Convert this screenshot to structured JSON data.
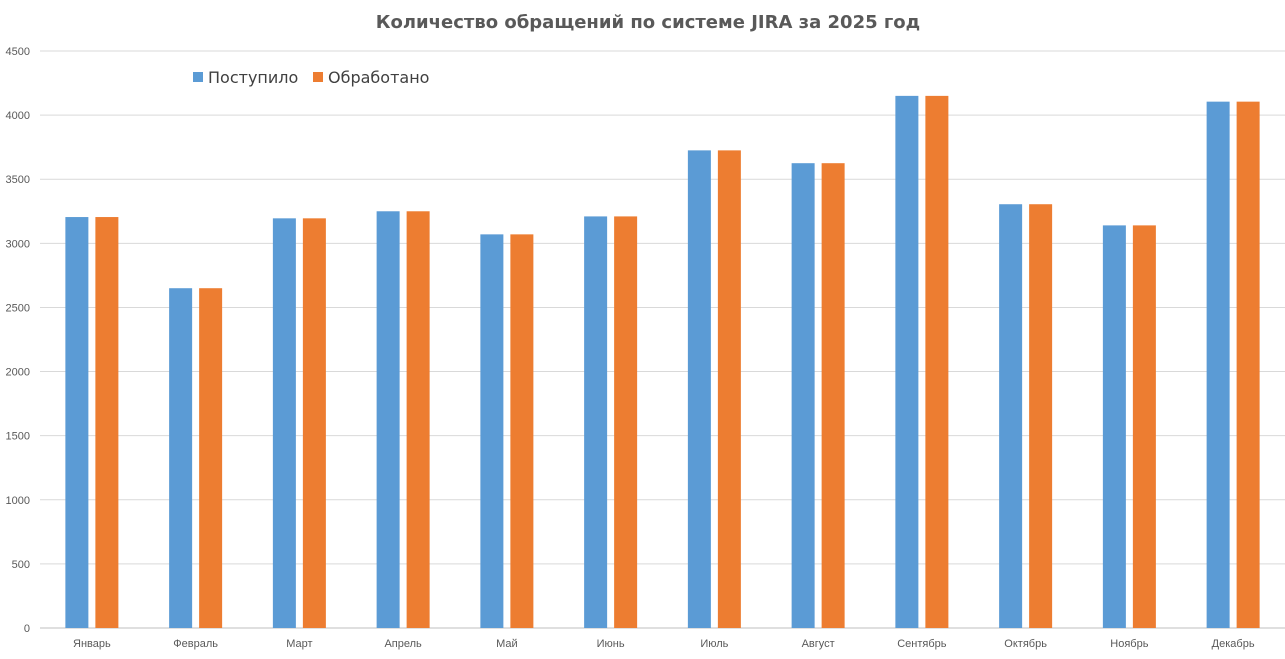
{
  "chart_data": {
    "type": "bar",
    "title": "Количество обращений по системе JIRA за 2025 год",
    "xlabel": "",
    "ylabel": "",
    "ylim": [
      0,
      4500
    ],
    "yticks": [
      0,
      500,
      1000,
      1500,
      2000,
      2500,
      3000,
      3500,
      4000,
      4500
    ],
    "grid": true,
    "legend_position": "top-left",
    "categories": [
      "Январь",
      "Февраль",
      "Март",
      "Апрель",
      "Май",
      "Июнь",
      "Июль",
      "Август",
      "Сентябрь",
      "Октябрь",
      "Ноябрь",
      "Декабрь"
    ],
    "series": [
      {
        "name": "Поступило",
        "color": "#5B9BD5",
        "values": [
          3205,
          2650,
          3195,
          3250,
          3070,
          3210,
          3725,
          3625,
          4150,
          3305,
          3140,
          4105
        ]
      },
      {
        "name": "Обработано",
        "color": "#ED7D31",
        "values": [
          3205,
          2650,
          3195,
          3250,
          3070,
          3210,
          3725,
          3625,
          4150,
          3305,
          3140,
          4105
        ]
      }
    ]
  }
}
